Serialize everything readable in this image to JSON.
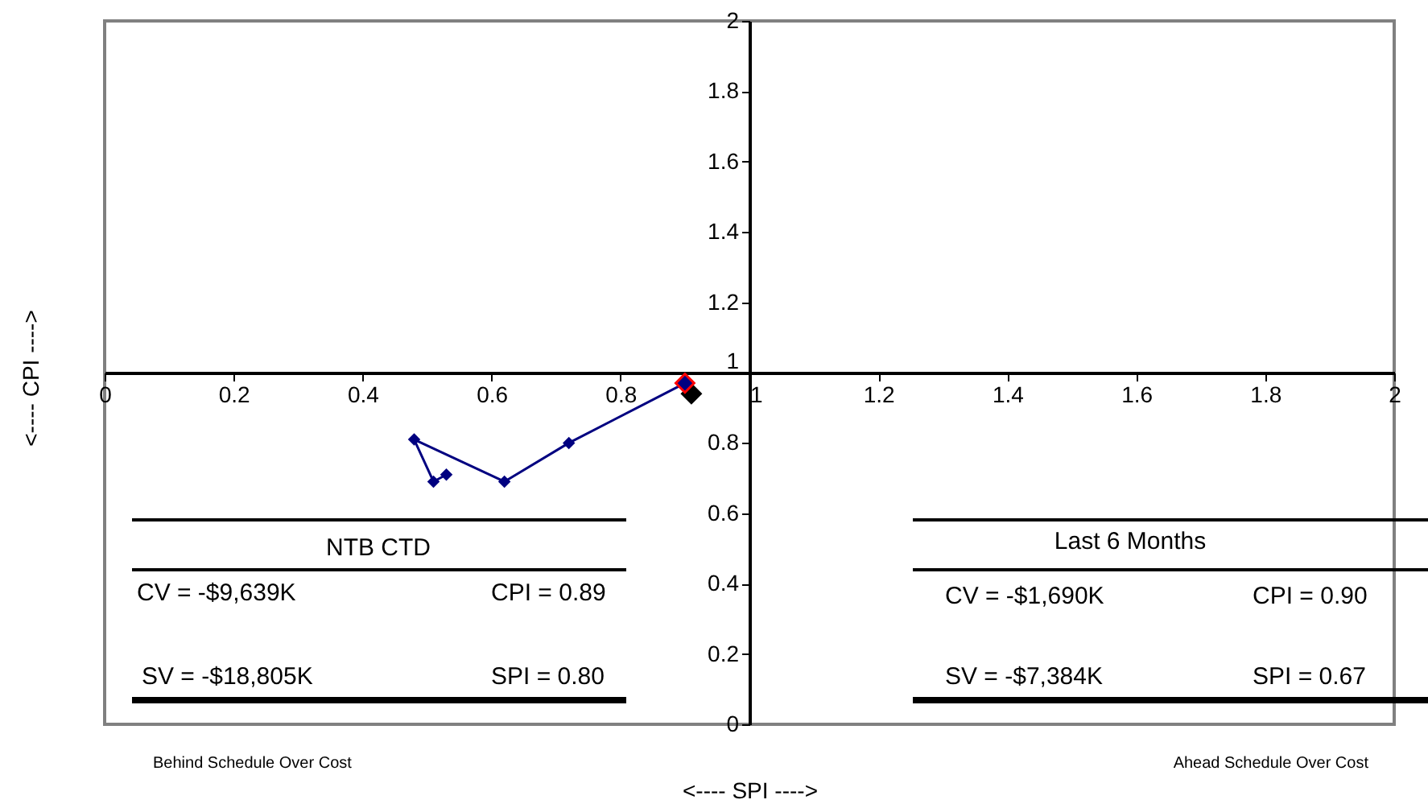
{
  "chart_data": {
    "type": "scatter",
    "xlabel": "<---- SPI ---->",
    "ylabel": "<---- CPI ---->",
    "xlim": [
      0,
      2
    ],
    "ylim": [
      0,
      2
    ],
    "xticks": [
      0,
      0.2,
      0.4,
      0.6,
      0.8,
      1,
      1.2,
      1.4,
      1.6,
      1.8,
      2
    ],
    "yticks": [
      0,
      0.2,
      0.4,
      0.6,
      0.8,
      1,
      1.2,
      1.4,
      1.6,
      1.8,
      2
    ],
    "grid": false,
    "marker": "diamond",
    "series": [
      {
        "type": "line",
        "color": "#000080",
        "x": [
          0.53,
          0.51,
          0.48,
          0.62,
          0.72,
          0.9
        ],
        "values": [
          0.71,
          0.69,
          0.81,
          0.69,
          0.8,
          0.97
        ]
      },
      {
        "color": "#000000",
        "x": [
          0.91
        ],
        "values": [
          0.94
        ]
      },
      {
        "color": "#000080",
        "x": [
          0.9
        ],
        "values": [
          0.97
        ]
      }
    ],
    "annotations": [
      "Behind Schedule Over Cost",
      "Ahead Schedule Over Cost",
      "NTB CTD",
      "CV = -$9,639K",
      "CPI = 0.89",
      "SV = -$18,805K",
      "SPI = 0.80",
      "Last 6 Months",
      "CV = -$1,690K",
      "CPI = 0.90",
      "SV = -$7,384K",
      "SPI = 0.67"
    ]
  }
}
